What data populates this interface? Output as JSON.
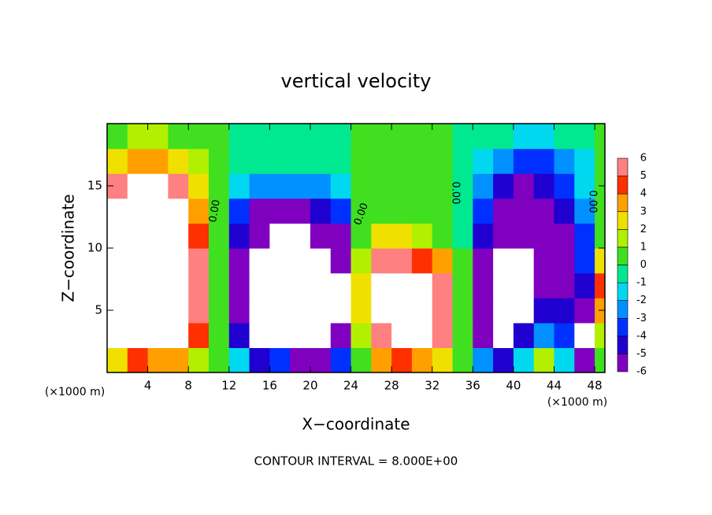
{
  "chart_data": {
    "type": "heatmap",
    "title": "vertical velocity",
    "x_label": "X−coordinate",
    "y_label": "Z−coordinate",
    "x_unit_label": "(×1000 m)",
    "footnote": "CONTOUR INTERVAL = 8.000E+00",
    "contour_labels": [
      "0.00",
      "0.00",
      "0.00",
      "0.00"
    ],
    "xlim": [
      0,
      49
    ],
    "ylim": [
      0,
      20
    ],
    "xticks": [
      4,
      8,
      12,
      16,
      20,
      24,
      28,
      32,
      36,
      40,
      44,
      48
    ],
    "yticks": [
      5,
      10,
      15
    ],
    "x": [
      1,
      3,
      5,
      7,
      9,
      11,
      13,
      15,
      17,
      19,
      21,
      23,
      25,
      27,
      29,
      31,
      33,
      35,
      37,
      39,
      41,
      43,
      45,
      47,
      49
    ],
    "y": [
      1,
      3,
      5,
      7,
      9,
      11,
      13,
      15,
      17,
      19
    ],
    "values": [
      [
        3,
        5,
        4,
        4,
        2,
        0.5,
        -1,
        -4,
        -3,
        -5,
        -5,
        -3,
        1,
        4,
        5,
        4,
        3,
        0.5,
        -2,
        -4,
        -1,
        2,
        -1,
        -5,
        1
      ],
      [
        6.5,
        7,
        8,
        7,
        5,
        0.5,
        -4,
        -7,
        -7,
        -7,
        -7,
        -6,
        2,
        6,
        7,
        7,
        6,
        1,
        -5,
        -7,
        -4,
        -2,
        -3,
        -7,
        2
      ],
      [
        7,
        8,
        8,
        8,
        6,
        0.5,
        -5,
        -7,
        -8,
        -8,
        -8,
        -7,
        3,
        7,
        8,
        7,
        6,
        1,
        -6,
        -7,
        -7,
        -4,
        -4,
        -5,
        4
      ],
      [
        8,
        8,
        8,
        8,
        6,
        0.5,
        -5,
        -7,
        -8,
        -8,
        -8,
        -7,
        3,
        7,
        7,
        8,
        6,
        1,
        -6,
        -8,
        -7,
        -6,
        -5,
        -4,
        5
      ],
      [
        8,
        8,
        8,
        8,
        6,
        0.5,
        -5,
        -7,
        -8,
        -8,
        -8,
        -6,
        2,
        6,
        6,
        5,
        4,
        0.5,
        -5,
        -7,
        -7,
        -6,
        -5,
        -3,
        3
      ],
      [
        8,
        8,
        8,
        8,
        5,
        0.5,
        -4,
        -6,
        -7,
        -7,
        -6,
        -5,
        1,
        3,
        3,
        2,
        1,
        0,
        -4,
        -6,
        -6,
        -6,
        -5,
        -3,
        1
      ],
      [
        7,
        8,
        8,
        7,
        4,
        0.5,
        -3,
        -5,
        -5,
        -5,
        -4,
        -3,
        0.5,
        1,
        1,
        1,
        0.5,
        -0.5,
        -3,
        -5,
        -6,
        -5,
        -4,
        -2,
        0.5
      ],
      [
        6,
        7,
        7,
        6,
        3,
        0.5,
        -1,
        -2,
        -2,
        -2,
        -2,
        -1,
        0.5,
        1,
        1,
        1,
        0.5,
        -0.5,
        -2,
        -4,
        -5,
        -4,
        -3,
        -1,
        0.5
      ],
      [
        3,
        4,
        4,
        3,
        2,
        0.5,
        0,
        -0.5,
        -0.5,
        -0.5,
        -0.5,
        0,
        0.5,
        0.5,
        1,
        1,
        0.5,
        0,
        -1,
        -2,
        -3,
        -3,
        -2,
        -1,
        0.5
      ],
      [
        1,
        1.5,
        1.5,
        1,
        0.5,
        0.5,
        0,
        0,
        0,
        0,
        0,
        0,
        0.5,
        0.5,
        0.5,
        0.5,
        0.5,
        0,
        -0.5,
        -0.5,
        -1,
        -1,
        -0.5,
        -0.5,
        0.5
      ]
    ],
    "colorbar": {
      "levels": [
        -6,
        -5,
        -4,
        -3,
        -2,
        -1,
        0,
        1,
        2,
        3,
        4,
        5,
        6
      ],
      "colors": [
        "#8000c0",
        "#2000d0",
        "#0030ff",
        "#0090ff",
        "#00d8f0",
        "#00e890",
        "#40e020",
        "#b0f000",
        "#f0e000",
        "#ffa000",
        "#ff3000",
        "#ff8080"
      ]
    },
    "out_of_range_color": "#ffffff"
  }
}
